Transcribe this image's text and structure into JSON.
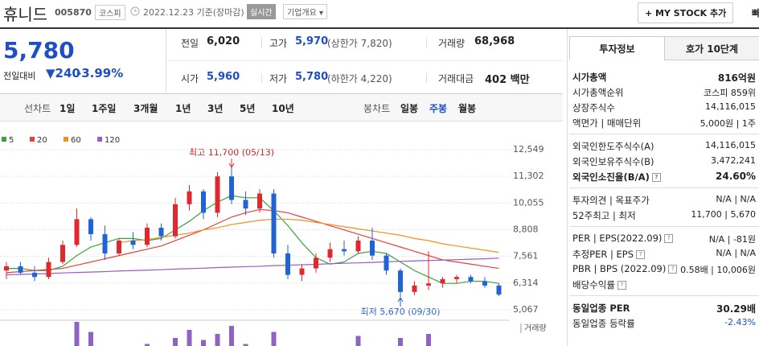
{
  "header": {
    "name": "휴니드",
    "code": "005870",
    "market": "코스피",
    "date": "2022.12.23 기준(장마감)",
    "realtime": "실시간",
    "overview": "기업개요",
    "mystock": "MY STOCK 추가",
    "quick_order": "빠른주문"
  },
  "quote": {
    "price": "5,780",
    "change_label": "전일대비",
    "change": "240",
    "change_pct": "-3.99%"
  },
  "stats": [
    [
      {
        "label": "전일",
        "value": "6,020"
      },
      {
        "label": "고가",
        "value": "5,970",
        "extra": "(상한가 7,820)"
      },
      {
        "label": "거래량",
        "value": "68,968"
      }
    ],
    [
      {
        "label": "시가",
        "value": "5,960"
      },
      {
        "label": "저가",
        "value": "5,780",
        "extra": "(하한가 4,220)"
      },
      {
        "label": "거래대금",
        "value": "402 백만"
      }
    ]
  ],
  "periods": {
    "line_label": "선차트",
    "line": [
      "1일",
      "1주일",
      "3개월",
      "1년",
      "3년",
      "5년",
      "10년"
    ],
    "candle_label": "봉차트",
    "candle": [
      "일봉",
      "주봉",
      "월봉"
    ],
    "selected_index": 1
  },
  "invest": {
    "tabs": [
      "투자정보",
      "호가 10단계"
    ],
    "groups": [
      [
        {
          "label": "시가총액",
          "value": "816억원",
          "bold": true
        },
        {
          "label": "시가총액순위",
          "value": "코스피 859위"
        },
        {
          "label": "상장주식수",
          "value": "14,116,015"
        },
        {
          "label": "액면가 | 매매단위",
          "value": "5,000원 | 1주"
        }
      ],
      [
        {
          "label": "외국인한도주식수(A)",
          "value": "14,116,015"
        },
        {
          "label": "외국인보유주식수(B)",
          "value": "3,472,241"
        },
        {
          "label": "외국인소진율(B/A)",
          "value": "24.60%",
          "bold": true,
          "help": true
        }
      ],
      [
        {
          "label": "투자의견 | 목표주가",
          "value": "N/A | N/A"
        },
        {
          "label": "52주최고 | 최저",
          "value": "11,700 | 5,670"
        }
      ],
      [
        {
          "label": "PER | EPS(2022.09)",
          "value": "N/A | -81원",
          "help": true
        },
        {
          "label": "추정PER | EPS",
          "value": "N/A | N/A",
          "help": true
        },
        {
          "label": "PBR | BPS (2022.09)",
          "value": "0.58배 | 10,006원",
          "help": true
        },
        {
          "label": "배당수익률",
          "help": true
        }
      ],
      [
        {
          "label": "동일업종 PER",
          "value": "30.29배",
          "bold": true
        },
        {
          "label": "동일업종 등락률",
          "value": "-2.43%",
          "tone": "down"
        }
      ]
    ]
  },
  "chart_data": {
    "type": "candlestick",
    "up_color": "#e0282e",
    "down_color": "#1f63d6",
    "grid": true,
    "ylim": [
      5067,
      12549
    ],
    "yticks": [
      {
        "value": 12549,
        "label": "12,549"
      },
      {
        "value": 11302,
        "label": "11,302"
      },
      {
        "value": 10055,
        "label": "10,055"
      },
      {
        "value": 8808,
        "label": "8,808"
      },
      {
        "value": 7561,
        "label": "7,561"
      },
      {
        "value": 6314,
        "label": "6,314"
      },
      {
        "value": 5067,
        "label": "5,067"
      }
    ],
    "open": [
      6900,
      7100,
      6800,
      6600,
      7300,
      8100,
      9300,
      8600,
      7700,
      8300,
      8100,
      8900,
      8500,
      10000,
      10600,
      9600,
      11300,
      10200,
      9800,
      10500,
      7700,
      6700,
      7000,
      7500,
      7900,
      7800,
      8300,
      7600,
      6900,
      5900,
      6200,
      6300,
      6500,
      6600,
      6400,
      6200
    ],
    "high": [
      7300,
      7300,
      7100,
      7500,
      8300,
      9800,
      9400,
      9000,
      8400,
      8700,
      9100,
      9100,
      10300,
      10900,
      10700,
      11500,
      11700,
      10600,
      10700,
      10700,
      8100,
      7200,
      7700,
      8200,
      8300,
      8500,
      8900,
      7700,
      7000,
      6400,
      7800,
      6600,
      6700,
      6700,
      6600,
      6300
    ],
    "low": [
      6500,
      6700,
      6400,
      6500,
      7200,
      8000,
      8300,
      7400,
      7600,
      7900,
      8000,
      8300,
      8400,
      9700,
      9300,
      9400,
      10000,
      9500,
      9600,
      7500,
      6500,
      6400,
      6800,
      7300,
      7600,
      7700,
      7400,
      6700,
      5670,
      5750,
      6000,
      6100,
      6300,
      6300,
      6100,
      5700
    ],
    "close": [
      7100,
      6800,
      6600,
      7300,
      8100,
      9300,
      8600,
      7700,
      8300,
      8100,
      8900,
      8500,
      10000,
      10600,
      9600,
      11300,
      10200,
      9800,
      10500,
      7700,
      6700,
      7000,
      7500,
      7900,
      7800,
      8300,
      7600,
      6900,
      5900,
      6200,
      6300,
      6500,
      6600,
      6400,
      6200,
      5780
    ],
    "series": [
      {
        "name": "5",
        "color": "#3aa33a",
        "values": [
          7000,
          7000,
          6900,
          6900,
          7100,
          7600,
          8000,
          8200,
          8400,
          8400,
          8300,
          8400,
          8800,
          9200,
          9700,
          10100,
          10400,
          10300,
          10300,
          9700,
          9000,
          8200,
          7500,
          7200,
          7300,
          7700,
          7800,
          7700,
          7300,
          6900,
          6600,
          6300,
          6300,
          6400,
          6400,
          6300
        ]
      },
      {
        "name": "20",
        "color": "#e8403a",
        "values": [
          6800,
          6850,
          6900,
          6950,
          7000,
          7150,
          7300,
          7450,
          7600,
          7750,
          7900,
          8050,
          8300,
          8550,
          8800,
          9100,
          9400,
          9600,
          9750,
          9700,
          9600,
          9400,
          9200,
          9000,
          8800,
          8600,
          8400,
          8200,
          8000,
          7800,
          7600,
          7400,
          7300,
          7200,
          7100,
          7000
        ]
      },
      {
        "name": "60",
        "color": "#f0901e",
        "values": [
          null,
          null,
          null,
          null,
          null,
          null,
          null,
          null,
          8200,
          8300,
          8350,
          8450,
          8550,
          8650,
          8800,
          8900,
          9050,
          9150,
          9250,
          9300,
          9300,
          9250,
          9150,
          9050,
          8950,
          8850,
          8750,
          8650,
          8550,
          8400,
          8300,
          8150,
          8050,
          7950,
          7850,
          7750
        ]
      },
      {
        "name": "120",
        "color": "#9a5cc6",
        "values": [
          6700,
          6720,
          6740,
          6760,
          6790,
          6810,
          6830,
          6850,
          6880,
          6900,
          6920,
          6940,
          6970,
          6990,
          7010,
          7040,
          7060,
          7080,
          7100,
          7130,
          7150,
          7170,
          7190,
          7220,
          7240,
          7260,
          7280,
          7310,
          7330,
          7350,
          7370,
          7390,
          7410,
          7430,
          7450,
          7480
        ]
      }
    ],
    "volume_label": "거래량",
    "volume_color": "#8e63c4",
    "volume": [
      20,
      15,
      25,
      20,
      60,
      200,
      150,
      80,
      40,
      50,
      90,
      40,
      120,
      160,
      110,
      140,
      180,
      90,
      70,
      150,
      60,
      50,
      45,
      60,
      55,
      130,
      70,
      60,
      120,
      70,
      140,
      60,
      50,
      40,
      50,
      60
    ],
    "annotations": [
      "최고 11,700 (05/13)",
      "최저 5,670 (09/30)"
    ]
  }
}
